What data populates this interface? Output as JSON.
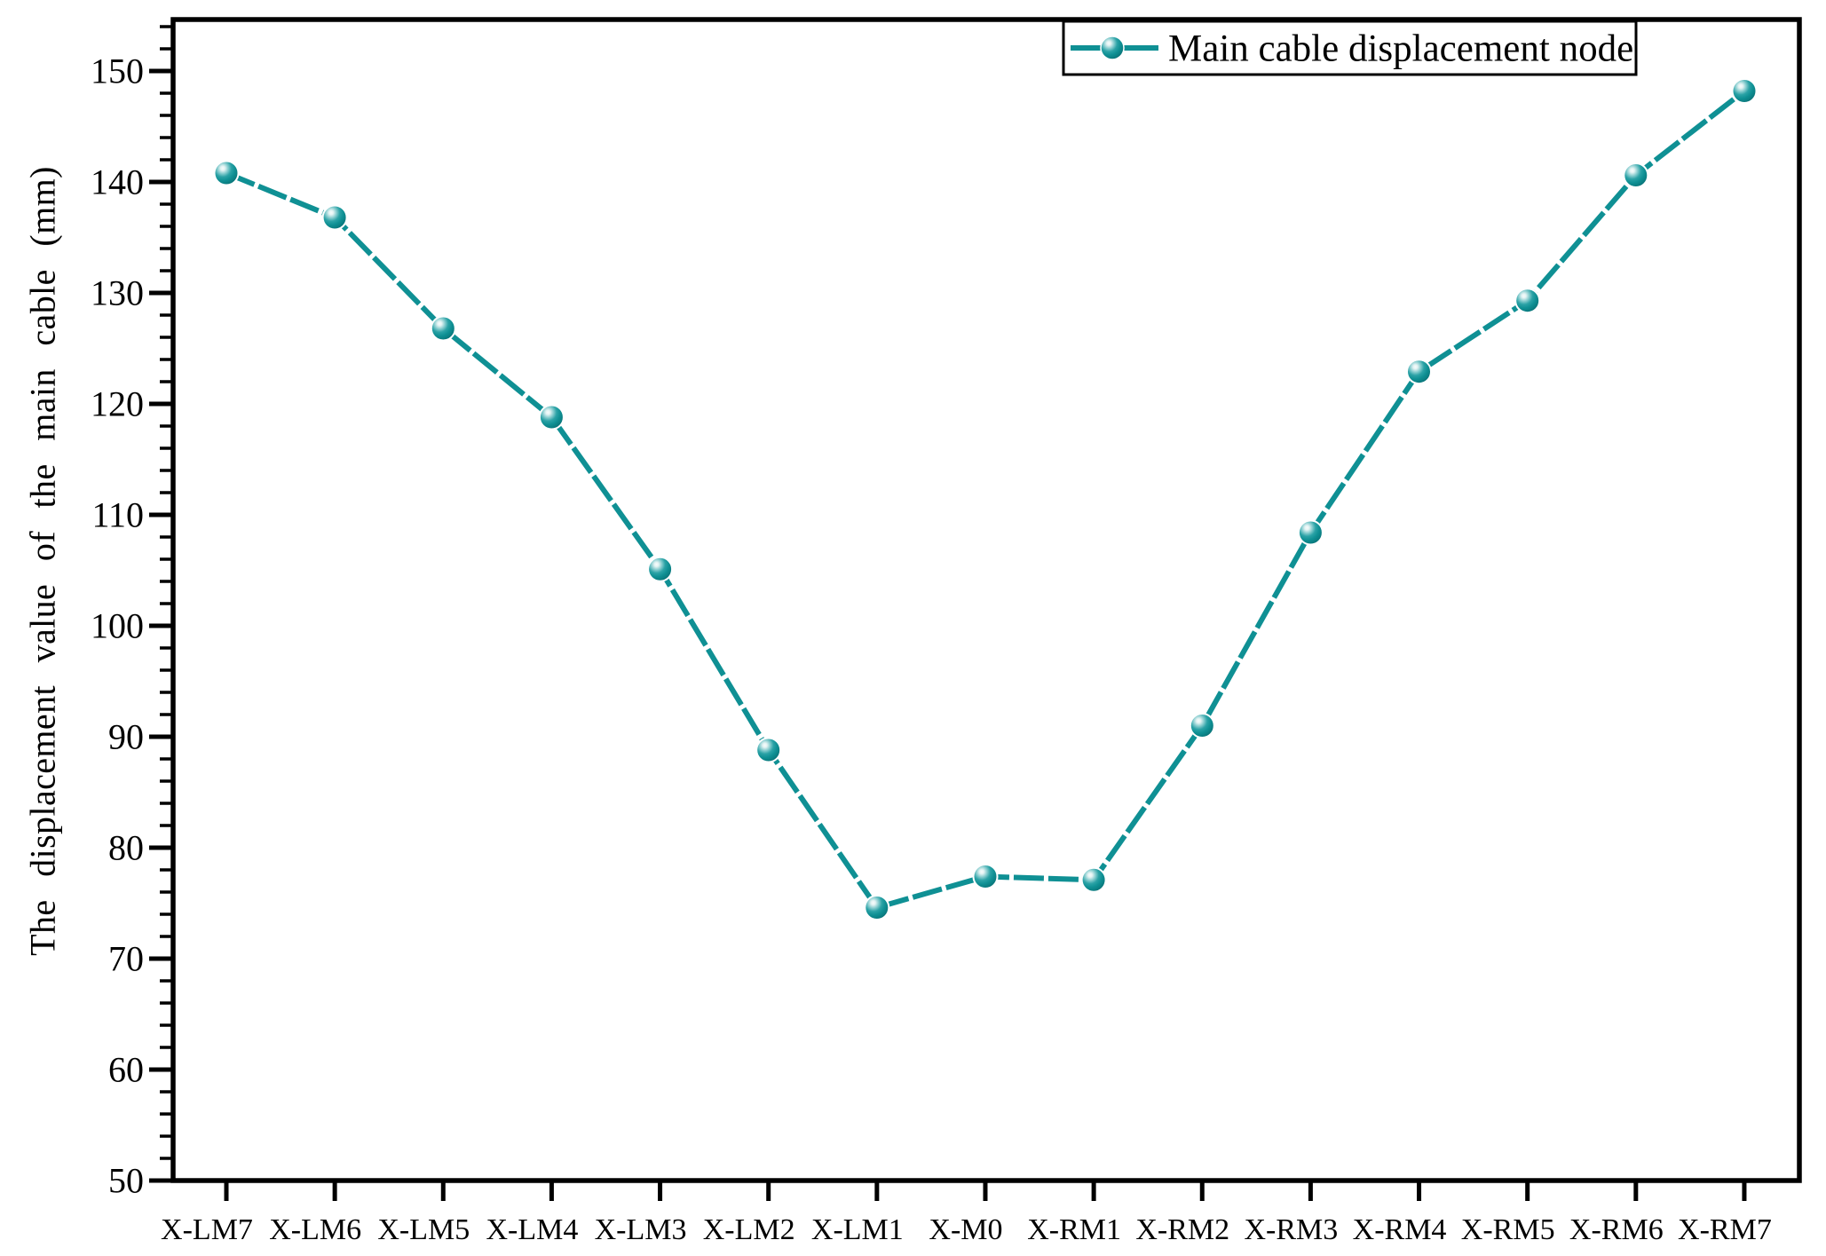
{
  "chart_data": {
    "type": "line",
    "title": "",
    "xlabel": "",
    "ylabel": "The displacement value of the main cable (mm)",
    "categories": [
      "X-LM7",
      "X-LM6",
      "X-LM5",
      "X-LM4",
      "X-LM3",
      "X-LM2",
      "X-LM1",
      "X-M0",
      "X-RM1",
      "X-RM2",
      "X-RM3",
      "X-RM4",
      "X-RM5",
      "X-RM6",
      "X-RM7"
    ],
    "series": [
      {
        "name": "Main cable displacement node",
        "marker": "sphere-ball",
        "values": [
          140.8,
          136.8,
          126.8,
          118.8,
          105.1,
          88.8,
          74.6,
          77.4,
          77.1,
          91.0,
          108.4,
          122.9,
          129.3,
          140.6,
          148.2
        ]
      }
    ],
    "ylim": [
      50,
      155
    ],
    "yticks": [
      50,
      60,
      70,
      80,
      90,
      100,
      110,
      120,
      130,
      140,
      150
    ],
    "ytick_labels": [
      "50",
      "60",
      "70",
      "80",
      "90",
      "100",
      "110",
      "120",
      "130",
      "140",
      "150"
    ],
    "ytick_minor_step": 2,
    "grid": "off",
    "legend_position": "top-right-inside"
  },
  "colors": {
    "accent": "#0F9094",
    "accent_dark": "#086B70",
    "axis": "#000000",
    "background": "#FFFFFF"
  }
}
